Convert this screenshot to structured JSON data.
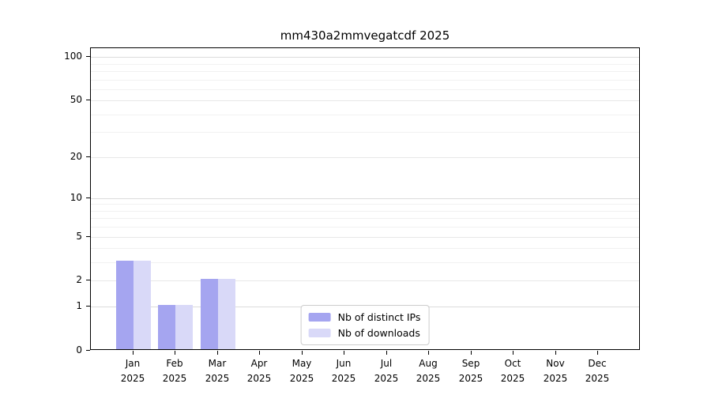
{
  "chart_data": {
    "type": "bar",
    "title": "mm430a2mmvegatcdf 2025",
    "categories": [
      "Jan 2025",
      "Feb 2025",
      "Mar 2025",
      "Apr 2025",
      "May 2025",
      "Jun 2025",
      "Jul 2025",
      "Aug 2025",
      "Sep 2025",
      "Oct 2025",
      "Nov 2025",
      "Dec 2025"
    ],
    "series": [
      {
        "name": "Nb of distinct IPs",
        "color": "#a5a5f0",
        "values": [
          3,
          1,
          2,
          0,
          0,
          0,
          0,
          0,
          0,
          0,
          0,
          0
        ]
      },
      {
        "name": "Nb of downloads",
        "color": "#d9d9f8",
        "values": [
          3,
          1,
          2,
          0,
          0,
          0,
          0,
          0,
          0,
          0,
          0,
          0
        ]
      }
    ],
    "yscale": "log1p",
    "ylim": [
      0,
      115
    ],
    "y_ticks": [
      0,
      1,
      2,
      5,
      10,
      20,
      50,
      100
    ],
    "y_major_emphasis": [
      1,
      10,
      100
    ],
    "y_minor_ticks": [
      3,
      4,
      6,
      7,
      8,
      9,
      30,
      40,
      60,
      70,
      80,
      90
    ],
    "grid": "horizontal",
    "legend_position": "lower center",
    "background": "#ffffff",
    "text_color": "#000000"
  }
}
